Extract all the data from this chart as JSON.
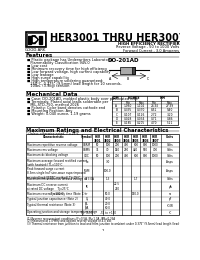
{
  "title_main": "HER3001 THRU HER3007",
  "subtitle1": "HIGH EFFICIENCY RECTIFIER",
  "subtitle2": "Reverse Voltage - 50 to 1000 Volts",
  "subtitle3": "Forward Current - 3.0 Amperes",
  "company": "GOOD-ARK",
  "package": "DO-201AD",
  "features_title": "Features",
  "features": [
    "Plastic package has Underwriters Laboratory",
    "Flammability Classification 94V-0",
    "Low cost",
    "Minimum recovery time for high efficiency",
    "Low forward voltage, high current capability",
    "Low leakage",
    "High surge capability",
    "High temperature soldering guaranteed:",
    "250°C, 0.375\" (9.5mm) lead length for 10 seconds,",
    "10lbs. (3.9kg) tension"
  ],
  "mech_title": "Mechanical Data",
  "mech": [
    "Case: DO-201AD, molded plastic body over passivated chip",
    "Terminals: Plated axial leads solderable per",
    "   MIL-STD-750, method 2026",
    "Polarity: Color band denotes cathode end",
    "Mounting Position: Any",
    "Weight: 0.040 ounce, 1.19 grams"
  ],
  "table_title": "Maximum Ratings and Electrical Characteristics",
  "dim_rows": [
    [
      "A",
      "1.060",
      "1.102",
      "26.92",
      "27.99"
    ],
    [
      "B",
      "0.335",
      "0.370",
      "8.51",
      "9.40"
    ],
    [
      "C",
      "0.107",
      "0.126",
      "2.72",
      "3.20"
    ],
    [
      "D",
      "0.028",
      "0.034",
      "0.71",
      "0.86"
    ],
    [
      "E",
      "0.185",
      "0.205",
      "4.70",
      "5.21"
    ]
  ],
  "elec_rows": [
    [
      "Maximum repetitive reverse voltage",
      "VRRM",
      "50",
      "100",
      "200",
      "400",
      "600",
      "800",
      "1000",
      "Volts"
    ],
    [
      "Maximum rms voltage",
      "VRMS",
      "35",
      "70",
      "140",
      "280",
      "420",
      "560",
      "700",
      "Volts"
    ],
    [
      "Maximum dc blocking voltage",
      "VDC",
      "50",
      "100",
      "200",
      "400",
      "600",
      "800",
      "1000",
      "Volts"
    ],
    [
      "Maximum average forward rectified current\n(with heatsink) TL=100°C",
      "Io",
      "",
      "3.0",
      "",
      "",
      "",
      "",
      "",
      "Amps"
    ],
    [
      "Peak forward surge current\n8.3ms single half sine-wave superimposed\non rated load (JEDEC method) Tj=25°C",
      "IFSM",
      "",
      "100.0",
      "",
      "",
      "",
      "",
      "",
      "Amps"
    ],
    [
      "Maximum instantaneous forward voltage at 3.0A",
      "VF",
      "",
      "1.3",
      "",
      "",
      "1.7",
      "",
      "",
      "Volts"
    ],
    [
      "Maximum DC reverse current\nat rated DC voltage    Tj=25°C\n                           Tj=100°C",
      "IR",
      "",
      "",
      "22.5\n250",
      "",
      "",
      "",
      "",
      "μA"
    ],
    [
      "Maximum reverse recovery time (Note 1)",
      "trr",
      "",
      "50.0",
      "",
      "",
      "150.0",
      "",
      "",
      "ns"
    ],
    [
      "Typical junction capacitance (Note 2)",
      "Cj",
      "",
      "49.0",
      "",
      "",
      "",
      "",
      "",
      "pF"
    ],
    [
      "Typical thermal resistance (Note 3)",
      "θJL\nθJA",
      "",
      "20.0\n60.0",
      "",
      "",
      "",
      "",
      "",
      "°C/W"
    ],
    [
      "Operating junction and storage temperature range",
      "TJ, TSTG",
      "",
      "-55 to +150",
      "",
      "",
      "",
      "",
      "",
      "°C"
    ]
  ],
  "elec_row_heights": [
    7,
    7,
    7,
    10,
    14,
    7,
    12,
    7,
    7,
    10,
    7
  ],
  "notes": [
    "(1) Reverse recovery test conditions: IF=0.5A, IR=1.0A, IRR=0.25A",
    "(2) Measured at 1.0 MHz and applied reverse voltage of 4.0 Vdc",
    "(3) Thermal resistance from junction to lead and from junction to ambient under 0.375\" (9.5mm) lead length (lead temperature as measured at lead bend point is measured)"
  ],
  "fig_bg": "#ffffff"
}
